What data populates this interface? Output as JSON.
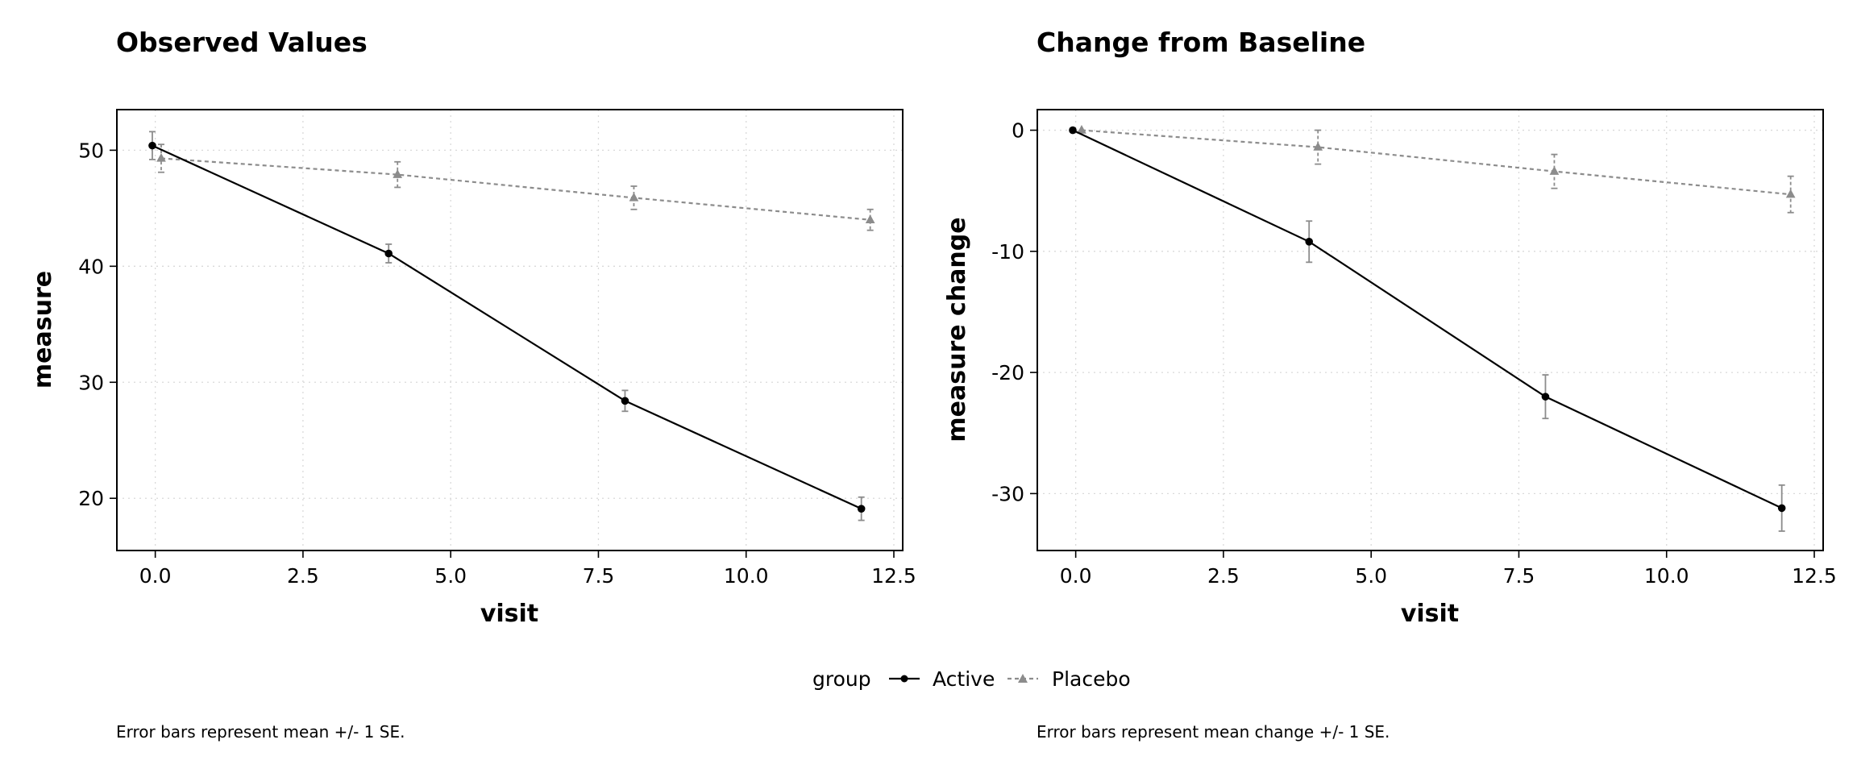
{
  "legend": {
    "title": "group",
    "entries": [
      {
        "name": "Active",
        "color": "#000000",
        "marker": "circle",
        "line": "solid"
      },
      {
        "name": "Placebo",
        "color": "#8c8c8c",
        "marker": "triangle",
        "line": "dashed"
      }
    ]
  },
  "chart_data": [
    {
      "type": "line",
      "title": "Observed Values",
      "xlabel": "visit",
      "ylabel": "measure",
      "caption": "Error bars represent mean +/- 1 SE.",
      "xlim": [
        -0.65,
        12.65
      ],
      "ylim": [
        15.5,
        53.5
      ],
      "xticks": [
        0,
        2.5,
        5,
        7.5,
        10,
        12.5
      ],
      "xtick_labels": [
        "0.0",
        "2.5",
        "5.0",
        "7.5",
        "10.0",
        "12.5"
      ],
      "yticks": [
        20,
        30,
        40,
        50
      ],
      "ytick_labels": [
        "20",
        "30",
        "40",
        "50"
      ],
      "grid": true,
      "series": [
        {
          "name": "Active",
          "x": [
            0,
            4,
            8,
            12
          ],
          "y": [
            50.4,
            41.1,
            28.4,
            19.1
          ],
          "se": [
            1.2,
            0.8,
            0.9,
            1.0
          ]
        },
        {
          "name": "Placebo",
          "x": [
            0,
            4,
            8,
            12
          ],
          "y": [
            49.3,
            47.9,
            45.9,
            44.0
          ],
          "se": [
            1.2,
            1.1,
            1.0,
            0.9
          ]
        }
      ]
    },
    {
      "type": "line",
      "title": "Change from Baseline",
      "xlabel": "visit",
      "ylabel": "measure change",
      "caption": "Error bars represent mean change +/- 1 SE.",
      "xlim": [
        -0.65,
        12.65
      ],
      "ylim": [
        -34.7,
        1.7
      ],
      "xticks": [
        0,
        2.5,
        5,
        7.5,
        10,
        12.5
      ],
      "xtick_labels": [
        "0.0",
        "2.5",
        "5.0",
        "7.5",
        "10.0",
        "12.5"
      ],
      "yticks": [
        -30,
        -20,
        -10,
        0
      ],
      "ytick_labels": [
        "-30",
        "-20",
        "-10",
        "0"
      ],
      "grid": true,
      "series": [
        {
          "name": "Active",
          "x": [
            0,
            4,
            8,
            12
          ],
          "y": [
            0.0,
            -9.2,
            -22.0,
            -31.2
          ],
          "se": [
            0.0,
            1.7,
            1.8,
            1.9
          ]
        },
        {
          "name": "Placebo",
          "x": [
            0,
            4,
            8,
            12
          ],
          "y": [
            0.0,
            -1.4,
            -3.4,
            -5.3
          ],
          "se": [
            0.0,
            1.4,
            1.4,
            1.5
          ]
        }
      ]
    }
  ]
}
